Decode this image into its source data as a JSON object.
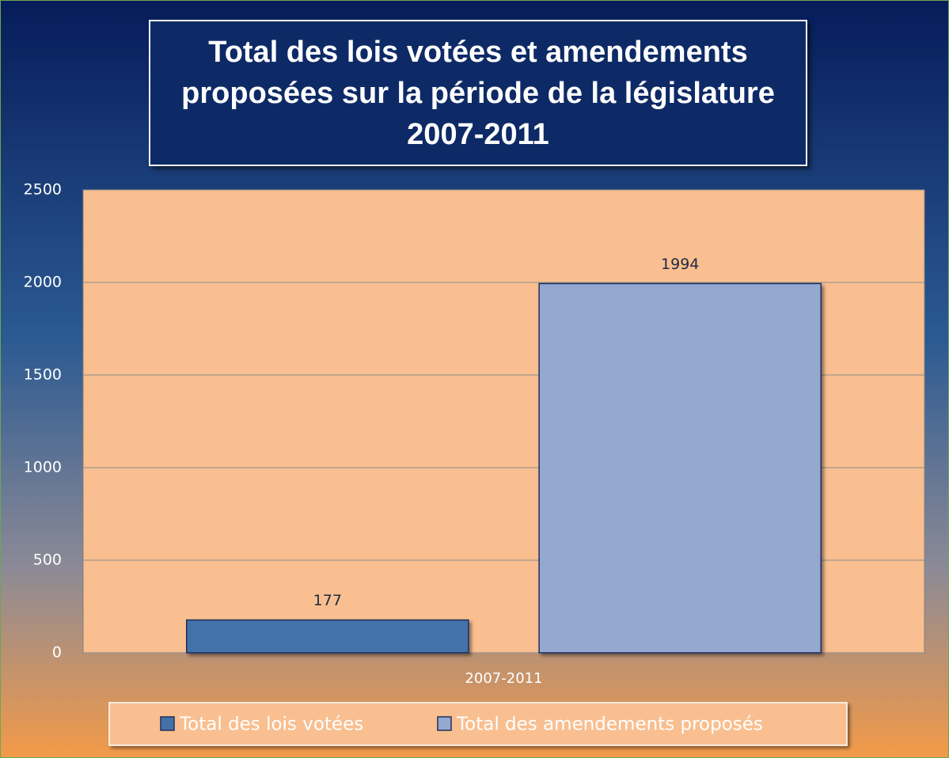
{
  "chart_data": {
    "type": "bar",
    "title": "Total des lois votées et amendements proposées sur la période de la législature 2007-2011",
    "categories": [
      "2007-2011"
    ],
    "series": [
      {
        "name": "Total des lois votées",
        "color": "#4472a8",
        "values": [
          177
        ]
      },
      {
        "name": "Total des amendements proposés",
        "color": "#95a9d0",
        "values": [
          1994
        ]
      }
    ],
    "ylim": [
      0,
      2500
    ],
    "yticks": [
      0,
      500,
      1000,
      1500,
      2000,
      2500
    ],
    "grid": true,
    "legend": "bottom",
    "data_labels": true
  }
}
